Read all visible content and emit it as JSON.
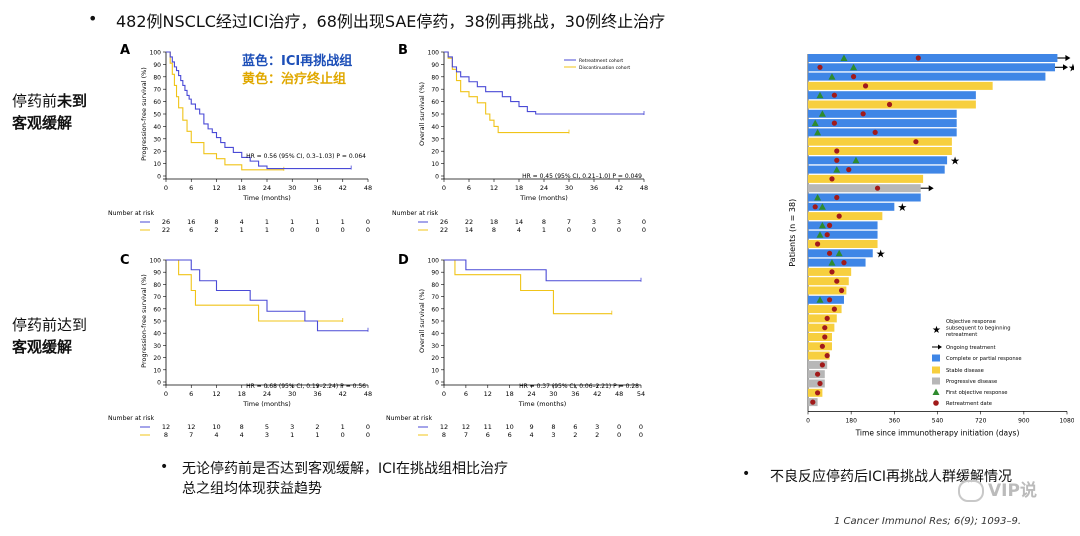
{
  "header": {
    "bullet": "•",
    "text": "482例NSCLC经过ICI治疗，68例出现SAE停药，38例再挑战，30例终止治疗"
  },
  "row_labels": [
    {
      "line1_pre": "停药前",
      "line1_bold": "未到",
      "line2": "客观缓解"
    },
    {
      "line1_pre": "停药前达到",
      "line1_bold": "",
      "line2": "客观缓解"
    }
  ],
  "legend_note": {
    "blue": "蓝色：ICI再挑战组",
    "yellow": "黄色：治疗终止组"
  },
  "colors": {
    "retreat": "#4a4ad6",
    "discont": "#f0c419",
    "cr": "#3f86e6",
    "sd": "#f7cf3e",
    "pd": "#b7b7b7",
    "tri": "#2e8b2e",
    "dot": "#a11a1a"
  },
  "footer": {
    "bullet": "•",
    "left_line1": "无论停药前是否达到客观缓解，ICI在挑战组相比治疗",
    "left_line2": "总之组均体现获益趋势",
    "right": "不良反应停药后ICI再挑战人群缓解情况",
    "watermark": "VIP说",
    "citation": "1 Cancer Immunol Res; 6(9); 1093–9."
  },
  "chart_data": [
    {
      "id": "A",
      "type": "line",
      "ylabel": "Progression-free survival (%)",
      "xlabel": "Time (months)",
      "xticks": [
        0,
        6,
        12,
        18,
        24,
        30,
        36,
        42,
        48
      ],
      "yticks": [
        0,
        10,
        20,
        30,
        40,
        50,
        60,
        70,
        80,
        90,
        100
      ],
      "xlim": [
        0,
        48
      ],
      "ylim": [
        0,
        100
      ],
      "hr_text": "HR = 0.56 (95% CI, 0.3–1.03) P = 0.064",
      "risk_title": "Number at risk",
      "series": [
        {
          "key": "retreat",
          "steps": [
            [
              0,
              100
            ],
            [
              1,
              96
            ],
            [
              1.5,
              92
            ],
            [
              2,
              88
            ],
            [
              2.5,
              85
            ],
            [
              3,
              81
            ],
            [
              3.5,
              77
            ],
            [
              4,
              73
            ],
            [
              4.5,
              69
            ],
            [
              5,
              65
            ],
            [
              5.5,
              62
            ],
            [
              6,
              58
            ],
            [
              7,
              54
            ],
            [
              8,
              50
            ],
            [
              9,
              42
            ],
            [
              10,
              38
            ],
            [
              11,
              35
            ],
            [
              12,
              31
            ],
            [
              13,
              27
            ],
            [
              14,
              23
            ],
            [
              16,
              19
            ],
            [
              18,
              15
            ],
            [
              20,
              12
            ],
            [
              22,
              8
            ],
            [
              24,
              6
            ],
            [
              44,
              6
            ]
          ],
          "risk": [
            26,
            16,
            8,
            4,
            1,
            1,
            1,
            1,
            0
          ]
        },
        {
          "key": "discont",
          "steps": [
            [
              0,
              100
            ],
            [
              1,
              91
            ],
            [
              1.5,
              82
            ],
            [
              2,
              73
            ],
            [
              2.5,
              64
            ],
            [
              3,
              55
            ],
            [
              4,
              45
            ],
            [
              5,
              36
            ],
            [
              6,
              27
            ],
            [
              9,
              18
            ],
            [
              12,
              14
            ],
            [
              14,
              9
            ],
            [
              18,
              5
            ],
            [
              28,
              5
            ]
          ],
          "risk": [
            22,
            6,
            2,
            1,
            1,
            0,
            0,
            0,
            0
          ]
        }
      ]
    },
    {
      "id": "B",
      "type": "line",
      "ylabel": "Overall survival (%)",
      "xlabel": "Time (months)",
      "xticks": [
        0,
        6,
        12,
        18,
        24,
        30,
        36,
        42,
        48
      ],
      "yticks": [
        0,
        10,
        20,
        30,
        40,
        50,
        60,
        70,
        80,
        90,
        100
      ],
      "xlim": [
        0,
        48
      ],
      "ylim": [
        0,
        100
      ],
      "hr_text": "HR = 0.45 (95% CI, 0.21–1.0) P = 0.049",
      "legend": [
        "Retreatment cohort",
        "Discontinuation cohort"
      ],
      "risk_title": "Number at risk",
      "series": [
        {
          "key": "retreat",
          "steps": [
            [
              0,
              100
            ],
            [
              1,
              96
            ],
            [
              2,
              88
            ],
            [
              3,
              84
            ],
            [
              4,
              80
            ],
            [
              6,
              76
            ],
            [
              8,
              72
            ],
            [
              10,
              68
            ],
            [
              14,
              64
            ],
            [
              16,
              60
            ],
            [
              18,
              56
            ],
            [
              20,
              52
            ],
            [
              22,
              50
            ],
            [
              48,
              50
            ]
          ],
          "risk": [
            26,
            22,
            18,
            14,
            8,
            7,
            3,
            3,
            0
          ]
        },
        {
          "key": "discont",
          "steps": [
            [
              0,
              100
            ],
            [
              1,
              95
            ],
            [
              2,
              86
            ],
            [
              3,
              77
            ],
            [
              4,
              68
            ],
            [
              6,
              64
            ],
            [
              8,
              59
            ],
            [
              10,
              50
            ],
            [
              11,
              45
            ],
            [
              12,
              40
            ],
            [
              13,
              35
            ],
            [
              30,
              35
            ]
          ],
          "risk": [
            22,
            14,
            8,
            4,
            1,
            0,
            0,
            0,
            0
          ]
        }
      ]
    },
    {
      "id": "C",
      "type": "line",
      "ylabel": "Progression-free survival (%)",
      "xlabel": "Time (months)",
      "xticks": [
        0,
        6,
        12,
        18,
        24,
        30,
        36,
        42,
        48
      ],
      "yticks": [
        0,
        10,
        20,
        30,
        40,
        50,
        60,
        70,
        80,
        90,
        100
      ],
      "xlim": [
        0,
        48
      ],
      "ylim": [
        0,
        100
      ],
      "hr_text": "HR = 0.68 (95% CI, 0.19–2.24) P = 0.56",
      "risk_title": "Number at risk",
      "series": [
        {
          "key": "retreat",
          "steps": [
            [
              0,
              100
            ],
            [
              6,
              92
            ],
            [
              8,
              83
            ],
            [
              12,
              75
            ],
            [
              20,
              67
            ],
            [
              24,
              58
            ],
            [
              33,
              50
            ],
            [
              36,
              42
            ],
            [
              48,
              42
            ]
          ],
          "risk": [
            12,
            12,
            10,
            8,
            5,
            3,
            2,
            1,
            0
          ]
        },
        {
          "key": "discont",
          "steps": [
            [
              0,
              100
            ],
            [
              3,
              88
            ],
            [
              6,
              75
            ],
            [
              7,
              63
            ],
            [
              18,
              63
            ],
            [
              22,
              50
            ],
            [
              42,
              50
            ]
          ],
          "risk": [
            8,
            7,
            4,
            4,
            3,
            1,
            1,
            0,
            0
          ]
        }
      ]
    },
    {
      "id": "D",
      "type": "line",
      "ylabel": "Overall survival (%)",
      "xlabel": "Time (months)",
      "xticks": [
        0,
        6,
        12,
        18,
        24,
        30,
        36,
        42,
        48,
        54
      ],
      "yticks": [
        0,
        10,
        20,
        30,
        40,
        50,
        60,
        70,
        80,
        90,
        100
      ],
      "xlim": [
        0,
        54
      ],
      "ylim": [
        0,
        100
      ],
      "hr_text": "HR = 0.37 (95% CI, 0.06–2.21) P = 0.28",
      "risk_title": "Number at risk",
      "series": [
        {
          "key": "retreat",
          "steps": [
            [
              0,
              100
            ],
            [
              6,
              92
            ],
            [
              28,
              83
            ],
            [
              54,
              83
            ]
          ],
          "risk": [
            12,
            12,
            11,
            10,
            9,
            8,
            6,
            3,
            0,
            0
          ]
        },
        {
          "key": "discont",
          "steps": [
            [
              0,
              100
            ],
            [
              3,
              88
            ],
            [
              18,
              88
            ],
            [
              21,
              75
            ],
            [
              30,
              56
            ],
            [
              46,
              56
            ]
          ],
          "risk": [
            8,
            7,
            6,
            6,
            4,
            3,
            2,
            2,
            0,
            0
          ]
        }
      ]
    },
    {
      "id": "swimmer",
      "type": "bar",
      "ylabel": "Patients (n = 38)",
      "xlabel": "Time since immunotherapy initiation (days)",
      "xticks": [
        0,
        180,
        360,
        540,
        720,
        900,
        1080
      ],
      "xlim": [
        0,
        1080
      ],
      "legend": [
        "Objective response subsequent to beginning retreatment",
        "Ongoing treatment",
        "Complete or partial response",
        "Stable disease",
        "Progressive disease",
        "First objective response",
        "Retreatment date"
      ],
      "bars": [
        {
          "len": 1040,
          "resp": "cr",
          "tri": 150,
          "dot": 460,
          "arrow": true,
          "star": false
        },
        {
          "len": 1030,
          "resp": "cr",
          "tri": 190,
          "dot": 50,
          "arrow": true,
          "star": true
        },
        {
          "len": 990,
          "resp": "cr",
          "tri": 100,
          "dot": 190,
          "arrow": false,
          "star": false
        },
        {
          "len": 770,
          "resp": "sd",
          "tri": null,
          "dot": 240,
          "arrow": false,
          "star": false
        },
        {
          "len": 700,
          "resp": "cr",
          "tri": 50,
          "dot": 110,
          "arrow": false,
          "star": false
        },
        {
          "len": 700,
          "resp": "sd",
          "tri": null,
          "dot": 340,
          "arrow": false,
          "star": false
        },
        {
          "len": 620,
          "resp": "cr",
          "tri": 60,
          "dot": 230,
          "arrow": false,
          "star": false
        },
        {
          "len": 620,
          "resp": "cr",
          "tri": 30,
          "dot": 110,
          "arrow": false,
          "star": false
        },
        {
          "len": 620,
          "resp": "cr",
          "tri": 40,
          "dot": 280,
          "arrow": false,
          "star": false
        },
        {
          "len": 600,
          "resp": "sd",
          "tri": null,
          "dot": 450,
          "arrow": false,
          "star": false
        },
        {
          "len": 600,
          "resp": "sd",
          "tri": null,
          "dot": 120,
          "arrow": false,
          "star": false
        },
        {
          "len": 580,
          "resp": "cr",
          "tri": 200,
          "dot": 120,
          "arrow": false,
          "star": true
        },
        {
          "len": 570,
          "resp": "cr",
          "tri": 120,
          "dot": 170,
          "arrow": false,
          "star": false
        },
        {
          "len": 480,
          "resp": "sd",
          "tri": null,
          "dot": 100,
          "arrow": false,
          "star": false
        },
        {
          "len": 470,
          "resp": "pd",
          "tri": null,
          "dot": 290,
          "arrow": true,
          "star": false
        },
        {
          "len": 470,
          "resp": "cr",
          "tri": 40,
          "dot": 120,
          "arrow": false,
          "star": false
        },
        {
          "len": 360,
          "resp": "cr",
          "tri": 60,
          "dot": 30,
          "arrow": false,
          "star": true
        },
        {
          "len": 310,
          "resp": "sd",
          "tri": null,
          "dot": 130,
          "arrow": false,
          "star": false
        },
        {
          "len": 290,
          "resp": "cr",
          "tri": 60,
          "dot": 90,
          "arrow": false,
          "star": false
        },
        {
          "len": 290,
          "resp": "cr",
          "tri": 50,
          "dot": 80,
          "arrow": false,
          "star": false
        },
        {
          "len": 290,
          "resp": "sd",
          "tri": null,
          "dot": 40,
          "arrow": false,
          "star": false
        },
        {
          "len": 270,
          "resp": "cr",
          "tri": 130,
          "dot": 90,
          "arrow": false,
          "star": true
        },
        {
          "len": 240,
          "resp": "cr",
          "tri": 100,
          "dot": 150,
          "arrow": false,
          "star": false
        },
        {
          "len": 180,
          "resp": "sd",
          "tri": null,
          "dot": 100,
          "arrow": false,
          "star": false
        },
        {
          "len": 170,
          "resp": "sd",
          "tri": null,
          "dot": 120,
          "arrow": false,
          "star": false
        },
        {
          "len": 160,
          "resp": "sd",
          "tri": null,
          "dot": 140,
          "arrow": false,
          "star": false
        },
        {
          "len": 150,
          "resp": "cr",
          "tri": 50,
          "dot": 90,
          "arrow": false,
          "star": false
        },
        {
          "len": 140,
          "resp": "sd",
          "tri": null,
          "dot": 110,
          "arrow": false,
          "star": false
        },
        {
          "len": 120,
          "resp": "sd",
          "tri": null,
          "dot": 80,
          "arrow": false,
          "star": false
        },
        {
          "len": 110,
          "resp": "sd",
          "tri": null,
          "dot": 70,
          "arrow": false,
          "star": false
        },
        {
          "len": 100,
          "resp": "sd",
          "tri": null,
          "dot": 70,
          "arrow": false,
          "star": false
        },
        {
          "len": 100,
          "resp": "sd",
          "tri": null,
          "dot": 60,
          "arrow": false,
          "star": false
        },
        {
          "len": 90,
          "resp": "sd",
          "tri": null,
          "dot": 80,
          "arrow": false,
          "star": false
        },
        {
          "len": 80,
          "resp": "pd",
          "tri": null,
          "dot": 60,
          "arrow": false,
          "star": false
        },
        {
          "len": 70,
          "resp": "pd",
          "tri": null,
          "dot": 40,
          "arrow": false,
          "star": false
        },
        {
          "len": 70,
          "resp": "pd",
          "tri": null,
          "dot": 50,
          "arrow": false,
          "star": false
        },
        {
          "len": 60,
          "resp": "sd",
          "tri": null,
          "dot": 40,
          "arrow": false,
          "star": false
        },
        {
          "len": 40,
          "resp": "pd",
          "tri": null,
          "dot": 20,
          "arrow": false,
          "star": false
        }
      ]
    }
  ]
}
